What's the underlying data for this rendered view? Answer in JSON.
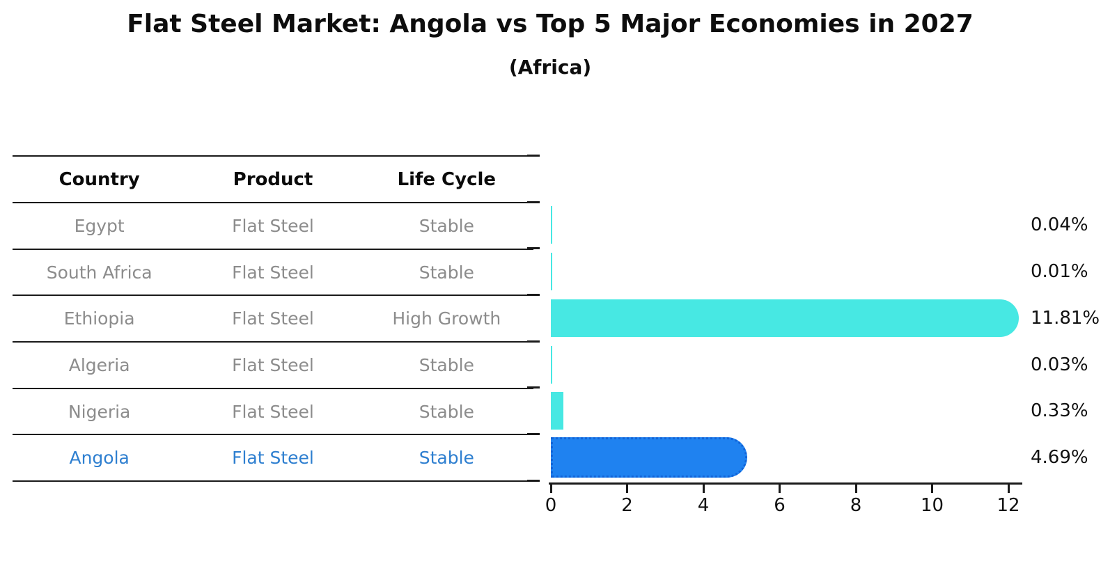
{
  "page": {
    "title": "Flat Steel Market: Angola vs Top 5 Major Economies in 2027",
    "subtitle": "(Africa)"
  },
  "table": {
    "headers": [
      "Country",
      "Product",
      "Life Cycle"
    ],
    "rows": [
      {
        "country": "Egypt",
        "product": "Flat Steel",
        "life_cycle": "Stable",
        "highlight": false
      },
      {
        "country": "South Africa",
        "product": "Flat Steel",
        "life_cycle": "Stable",
        "highlight": false
      },
      {
        "country": "Ethiopia",
        "product": "Flat Steel",
        "life_cycle": "High Growth",
        "highlight": false
      },
      {
        "country": "Algeria",
        "product": "Flat Steel",
        "life_cycle": "Stable",
        "highlight": false
      },
      {
        "country": "Nigeria",
        "product": "Flat Steel",
        "life_cycle": "Stable",
        "highlight": false
      },
      {
        "country": "Angola",
        "product": "Flat Steel",
        "life_cycle": "Stable",
        "highlight": true
      }
    ]
  },
  "chart_data": {
    "type": "bar",
    "orientation": "horizontal",
    "title": "Flat Steel Market: Angola vs Top 5 Major Economies in 2027",
    "subtitle": "(Africa)",
    "categories": [
      "Egypt",
      "South Africa",
      "Ethiopia",
      "Algeria",
      "Nigeria",
      "Angola"
    ],
    "values": [
      0.04,
      0.01,
      11.81,
      0.03,
      0.33,
      4.69
    ],
    "value_labels": [
      "0.04%",
      "0.01%",
      "11.81%",
      "0.03%",
      "0.33%",
      "4.69%"
    ],
    "xlabel": "",
    "ylabel": "",
    "xlim": [
      0,
      12
    ],
    "x_ticks": [
      0,
      2,
      4,
      6,
      8,
      10,
      12
    ],
    "grid": false,
    "legend": "none",
    "highlight_index": 5
  },
  "style": {
    "bar_color": "#47e8e3",
    "highlight_bar_color": "#1f82f0",
    "highlight_border_color": "#1264d8",
    "table_text_color": "#8c8c8c",
    "highlight_text_color": "#2e7fd0",
    "label_color": "#111111",
    "line_color": "#1a1a1a"
  }
}
